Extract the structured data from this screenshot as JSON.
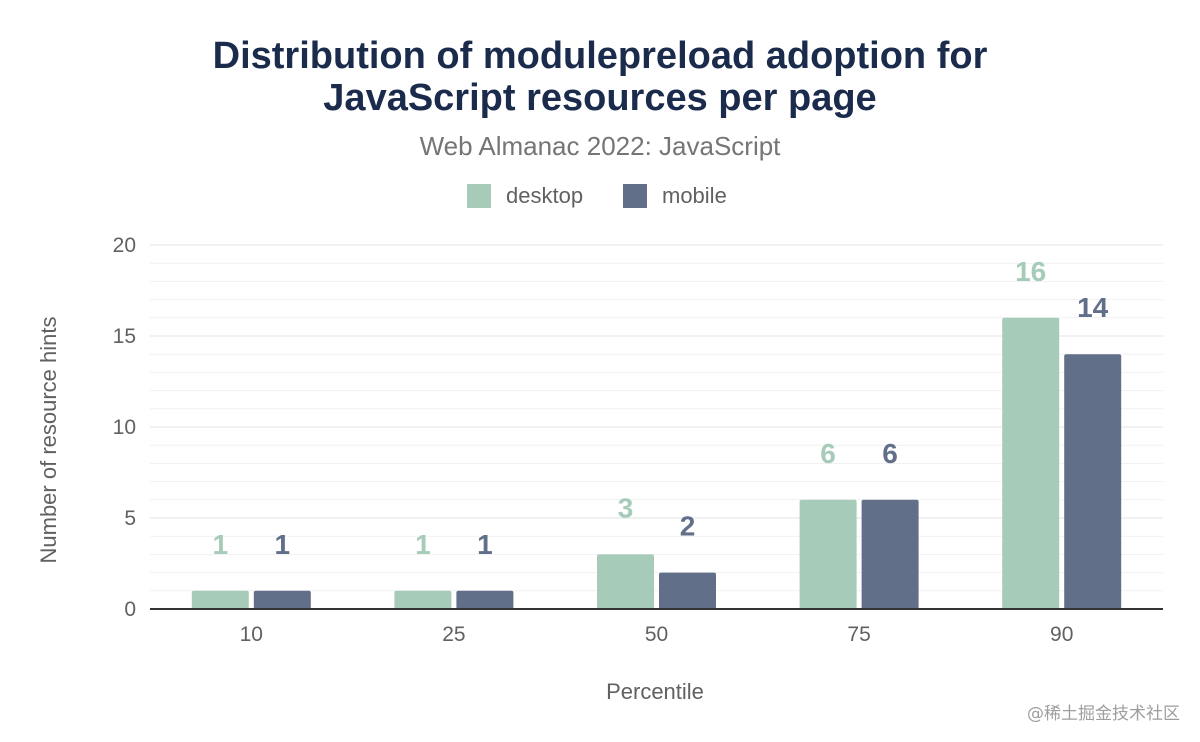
{
  "chart_data": {
    "type": "bar",
    "title_lines": [
      "Distribution of modulepreload adoption for",
      "JavaScript resources per page"
    ],
    "subtitle": "Web Almanac 2022: JavaScript",
    "xlabel": "Percentile",
    "ylabel": "Number of resource hints",
    "categories": [
      "10",
      "25",
      "50",
      "75",
      "90"
    ],
    "series": [
      {
        "name": "desktop",
        "color": "#a6cbb9",
        "values": [
          1,
          1,
          3,
          6,
          16
        ]
      },
      {
        "name": "mobile",
        "color": "#626f89",
        "values": [
          1,
          1,
          2,
          6,
          14
        ]
      }
    ],
    "ylim": [
      0,
      20
    ],
    "yticks": [
      "0",
      "5",
      "10",
      "15",
      "20"
    ],
    "grid": true,
    "legend_position": "top-center"
  },
  "watermark": "@稀土掘金技术社区"
}
